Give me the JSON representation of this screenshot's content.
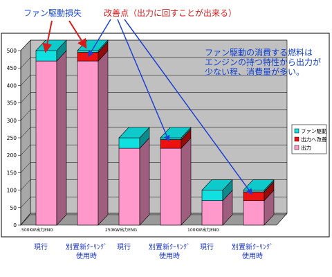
{
  "chart_data": {
    "type": "bar",
    "stacked": true,
    "categories": [
      "現行",
      "別置新ｸｰﾘﾝｸﾞ使用時",
      "現行",
      "別置新ｸｰﾘﾝｸﾞ使用時",
      "現行",
      "別置新ｸｰﾘﾝｸﾞ使用時"
    ],
    "category_lines": [
      [
        "現行"
      ],
      [
        "別置新ｸｰﾘﾝｸﾞ",
        "使用時"
      ],
      [
        "現行"
      ],
      [
        "別置新ｸｰﾘﾝｸﾞ",
        "使用時"
      ],
      [
        "現行"
      ],
      [
        "別置新ｸｰﾘﾝｸﾞ",
        "使用時"
      ]
    ],
    "groups": [
      "500KW出力ENG",
      "250KW出力ENG",
      "100KW出力ENG"
    ],
    "series": [
      {
        "name": "出力",
        "color": "#ff99cc",
        "values": [
          470,
          470,
          220,
          220,
          70,
          70
        ]
      },
      {
        "name": "出力へ改善",
        "color": "#ee1111",
        "values": [
          0,
          25,
          0,
          25,
          0,
          25
        ]
      },
      {
        "name": "ファン駆動",
        "color": "#11e0e0",
        "values": [
          30,
          5,
          30,
          5,
          30,
          5
        ]
      }
    ],
    "ylim": [
      0,
      500
    ],
    "yticks": [
      0,
      50,
      100,
      150,
      200,
      250,
      300,
      350,
      400,
      450,
      500
    ],
    "legend_position": "right",
    "grid": true
  },
  "annotations": {
    "fan_loss": "ファン駆動損失",
    "improvement": "改善点（出力に回すことが出来る）",
    "note_lines": [
      "ファン駆動の消費する燃料は",
      "エンジンの持つ特性から出力が",
      "少ない程、消費量が多い。"
    ]
  },
  "colors": {
    "wall": "#c0c0c0",
    "floor": "#9a9a9a",
    "arrow_red": "#d81b1b",
    "arrow_blue": "#1f3fd0"
  }
}
